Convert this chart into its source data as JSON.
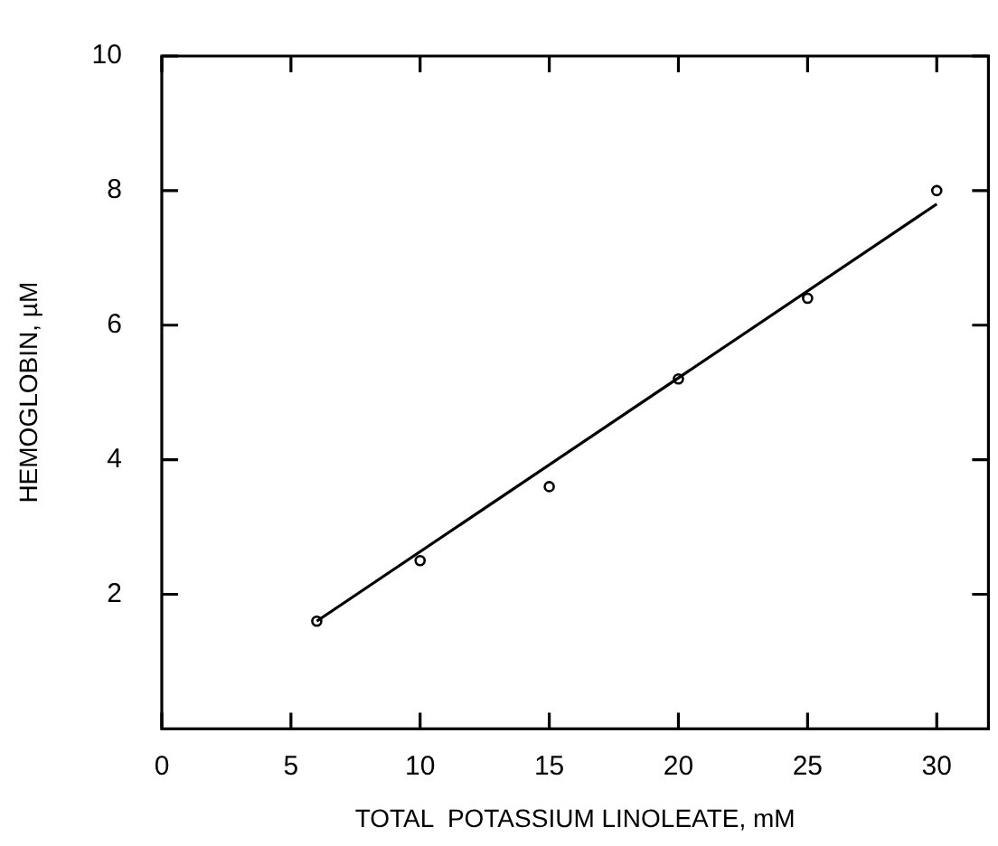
{
  "chart_data": {
    "type": "scatter",
    "xlabel": "TOTAL  POTASSIUM LINOLEATE, mM",
    "ylabel": "HEMOGLOBIN, µM",
    "series": [
      {
        "color": "#000000",
        "x": [
          6,
          10,
          15,
          20,
          25,
          30
        ],
        "values": [
          1.6,
          2.5,
          3.6,
          5.2,
          6.4,
          8.0
        ]
      },
      {
        "type": "line",
        "marker": "none",
        "color": "#000000",
        "x": [
          6,
          30
        ],
        "values": [
          1.6,
          7.8
        ]
      }
    ],
    "xlim": [
      0,
      32
    ],
    "xticks": [
      0,
      5,
      10,
      15,
      20,
      25,
      30
    ],
    "ylim": [
      0,
      10
    ],
    "yticks": [
      2,
      4,
      6,
      8,
      10
    ],
    "grid": false,
    "legend": false,
    "marker": "circle"
  }
}
